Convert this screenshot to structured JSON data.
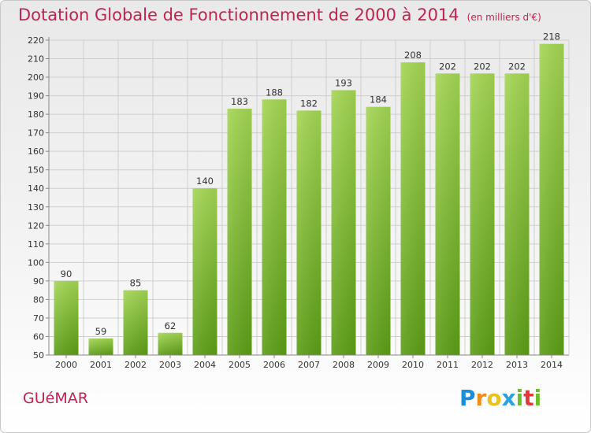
{
  "title": "Dotation Globale de Fonctionnement de 2000 à 2014",
  "unit": "(en milliers d'€)",
  "commune": "GUéMAR",
  "logo": {
    "letters": [
      "P",
      "r",
      "o",
      "x",
      "i",
      "t",
      "i"
    ],
    "colors": [
      "#1a8ed6",
      "#f08c1a",
      "#e8c21e",
      "#2aa2e0",
      "#6cbf2a",
      "#e23a3a",
      "#6cbf2a"
    ]
  },
  "colors": {
    "bar_light": "#a4d654",
    "bar_dark": "#5c9e16",
    "title": "#c0244e",
    "grid": "#cfcfcf"
  },
  "chart_data": {
    "type": "bar",
    "categories": [
      "2000",
      "2001",
      "2002",
      "2003",
      "2004",
      "2005",
      "2006",
      "2007",
      "2008",
      "2009",
      "2010",
      "2011",
      "2012",
      "2013",
      "2014"
    ],
    "values": [
      90,
      59,
      85,
      62,
      140,
      183,
      188,
      182,
      193,
      184,
      208,
      202,
      202,
      202,
      218
    ],
    "ylim": [
      50,
      220
    ],
    "yticks": [
      50,
      60,
      70,
      80,
      90,
      100,
      110,
      120,
      130,
      140,
      150,
      160,
      170,
      180,
      190,
      200,
      210,
      220
    ],
    "grid": true,
    "xlabel": "",
    "ylabel": ""
  }
}
